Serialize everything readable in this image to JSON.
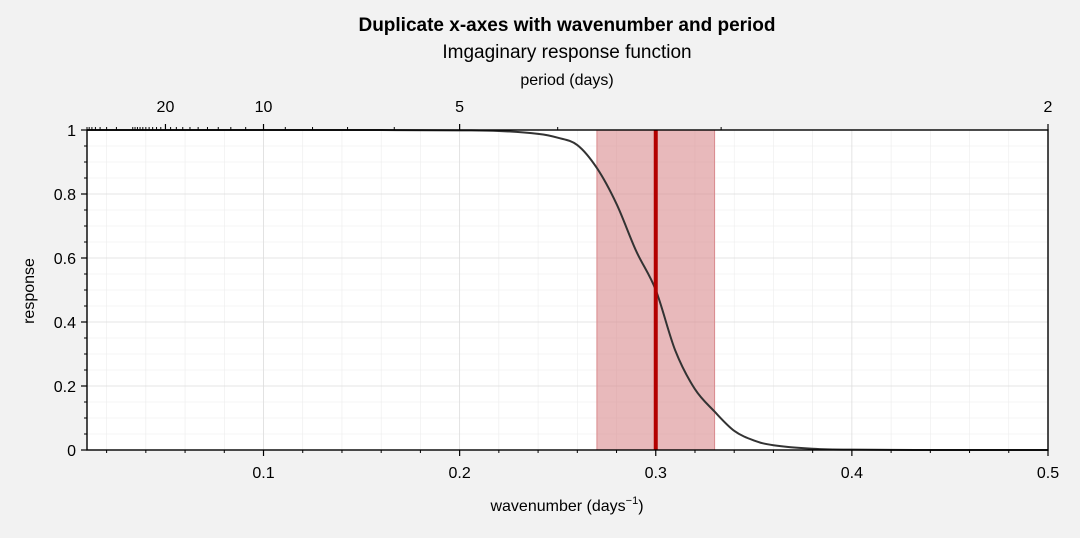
{
  "chart_data": {
    "type": "line",
    "title": "Duplicate x-axes with wavenumber and period",
    "subtitle": "Imgaginary response function",
    "xlabel_main": "wavenumber (days",
    "xlabel_exp": "−1",
    "xlabel_close": ")",
    "xlabel_top": "period (days)",
    "ylabel": "response",
    "xlim": [
      0.01,
      0.5
    ],
    "ylim": [
      0,
      1
    ],
    "grid": true,
    "x_ticks": [
      {
        "value": 0.1,
        "label": "0.1"
      },
      {
        "value": 0.2,
        "label": "0.2"
      },
      {
        "value": 0.3,
        "label": "0.3"
      },
      {
        "value": 0.4,
        "label": "0.4"
      },
      {
        "value": 0.5,
        "label": "0.5"
      }
    ],
    "y_ticks": [
      {
        "value": 0,
        "label": "0"
      },
      {
        "value": 0.2,
        "label": "0.2"
      },
      {
        "value": 0.4,
        "label": "0.4"
      },
      {
        "value": 0.6,
        "label": "0.6"
      },
      {
        "value": 0.8,
        "label": "0.8"
      },
      {
        "value": 1,
        "label": "1"
      }
    ],
    "top_ticks": [
      {
        "period": 20,
        "label": "20"
      },
      {
        "period": 10,
        "label": "10"
      },
      {
        "period": 5,
        "label": "5"
      },
      {
        "period": 2,
        "label": "2"
      }
    ],
    "series": [
      {
        "color": "#333333",
        "points": [
          [
            0.01,
            1.0
          ],
          [
            0.05,
            1.0
          ],
          [
            0.1,
            1.0
          ],
          [
            0.15,
            1.0
          ],
          [
            0.2,
            0.999
          ],
          [
            0.22,
            0.997
          ],
          [
            0.24,
            0.988
          ],
          [
            0.25,
            0.976
          ],
          [
            0.26,
            0.953
          ],
          [
            0.27,
            0.881
          ],
          [
            0.28,
            0.769
          ],
          [
            0.29,
            0.622
          ],
          [
            0.3,
            0.5
          ],
          [
            0.31,
            0.31
          ],
          [
            0.32,
            0.19
          ],
          [
            0.33,
            0.12
          ],
          [
            0.34,
            0.06
          ],
          [
            0.35,
            0.03
          ],
          [
            0.36,
            0.015
          ],
          [
            0.38,
            0.004
          ],
          [
            0.4,
            0.001
          ],
          [
            0.45,
            0.0
          ],
          [
            0.5,
            0.0
          ]
        ]
      }
    ],
    "vline": {
      "x": 0.3,
      "color": "#b30000"
    },
    "span": {
      "x0": 0.27,
      "x1": 0.33,
      "color": "#d98a8d"
    }
  }
}
